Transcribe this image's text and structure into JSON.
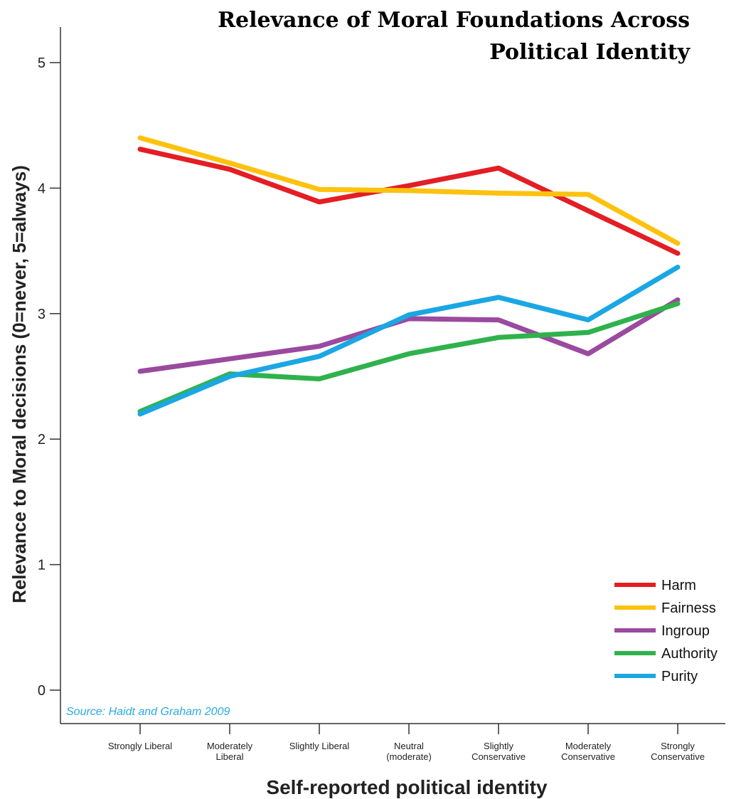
{
  "chart_data": {
    "type": "line",
    "title": "Relevance of Moral Foundations Across Political Identity",
    "title_lines": [
      "Relevance of Moral Foundations Across",
      "Political Identity"
    ],
    "xlabel": "Self-reported political identity",
    "ylabel": "Relevance to Moral decisions (0=never, 5=always)",
    "source": "Source: Haidt and Graham 2009",
    "source_color": "#29abe2",
    "ylim": [
      0,
      5
    ],
    "yticks": [
      0,
      1,
      2,
      3,
      4,
      5
    ],
    "categories": [
      [
        "Strongly Liberal"
      ],
      [
        "Moderately",
        "Liberal"
      ],
      [
        "Slightly Liberal"
      ],
      [
        "Neutral",
        "(moderate)"
      ],
      [
        "Slightly",
        "Conservative"
      ],
      [
        "Moderately",
        "Conservative"
      ],
      [
        "Strongly",
        "Conservative"
      ]
    ],
    "grid": false,
    "legend_position": "bottom-right",
    "series": [
      {
        "name": "Harm",
        "color": "#e31e24",
        "values": [
          4.31,
          4.15,
          3.89,
          4.02,
          4.16,
          3.82,
          3.48
        ]
      },
      {
        "name": "Fairness",
        "color": "#fdc20f",
        "values": [
          4.4,
          4.2,
          3.99,
          3.98,
          3.96,
          3.95,
          3.56
        ]
      },
      {
        "name": "Ingroup",
        "color": "#9a4a9f",
        "values": [
          2.54,
          2.64,
          2.74,
          2.96,
          2.95,
          2.68,
          3.11
        ]
      },
      {
        "name": "Authority",
        "color": "#2fb24c",
        "values": [
          2.22,
          2.52,
          2.48,
          2.68,
          2.81,
          2.85,
          3.08
        ]
      },
      {
        "name": "Purity",
        "color": "#1aa7e3",
        "values": [
          2.2,
          2.5,
          2.66,
          2.99,
          3.13,
          2.95,
          3.37
        ]
      }
    ]
  }
}
